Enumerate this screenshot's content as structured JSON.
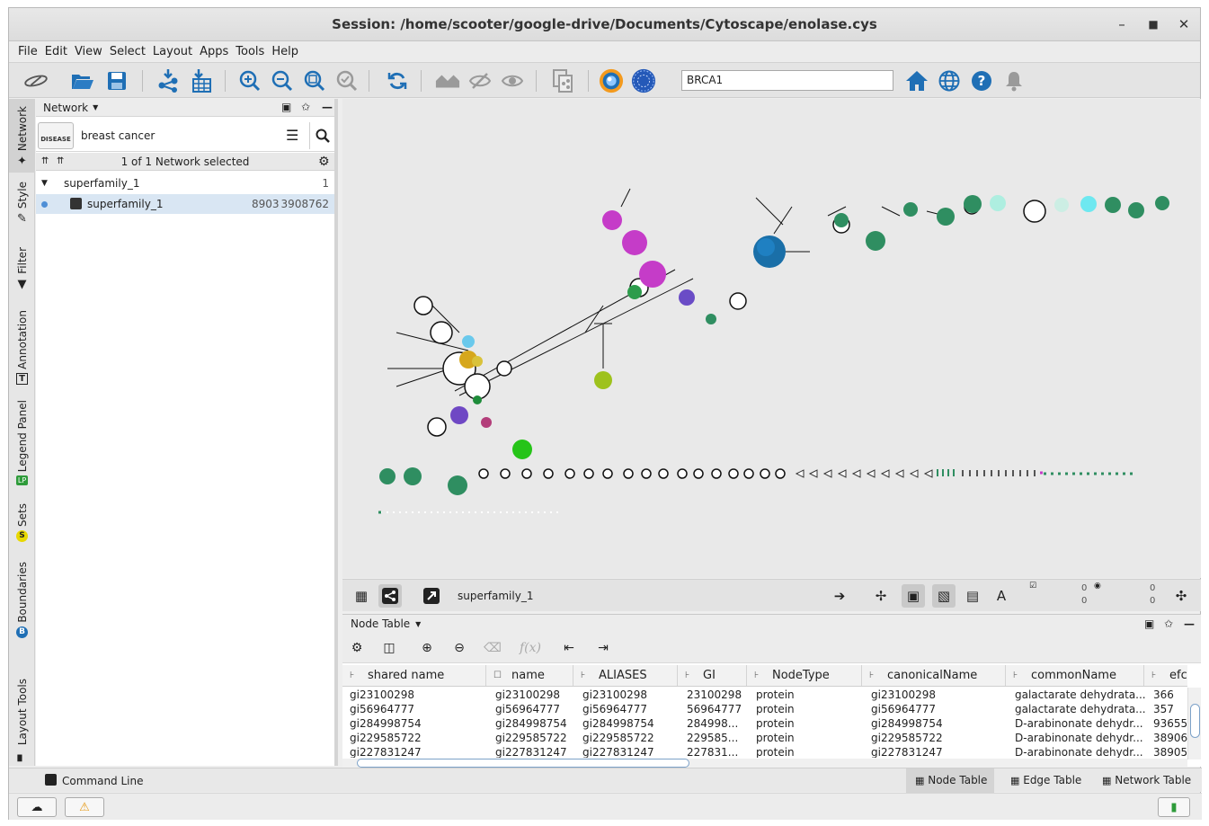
{
  "window": {
    "title": "Session: /home/scooter/google-drive/Documents/Cytoscape/enolase.cys"
  },
  "menu": [
    "File",
    "Edit",
    "View",
    "Select",
    "Layout",
    "Apps",
    "Tools",
    "Help"
  ],
  "toolbar": {
    "search_value": "BRCA1"
  },
  "side_tabs": [
    "Network",
    "Style",
    "Filter",
    "Annotation",
    "Legend Panel",
    "Sets",
    "Boundaries",
    "Layout Tools"
  ],
  "network_panel": {
    "title": "Network",
    "disease_label": "DISEASE",
    "query": "breast cancer",
    "selection_status": "1 of 1 Network selected",
    "tree": [
      {
        "name": "superfamily_1",
        "count": "1"
      },
      {
        "name": "superfamily_1",
        "nodes": "8903",
        "edges": "3908762"
      }
    ]
  },
  "network_view": {
    "name": "superfamily_1",
    "sel_nodes": "0",
    "sel_edges": "0",
    "hidden_nodes": "0",
    "hidden_edges": "0"
  },
  "table_panel": {
    "title": "Node Table",
    "columns": [
      "shared name",
      "name",
      "ALIASES",
      "GI",
      "NodeType",
      "canonicalName",
      "commonName",
      "efc"
    ],
    "rows": [
      [
        "gi23100298",
        "gi23100298",
        "gi23100298",
        "23100298",
        "protein",
        "gi23100298",
        "galactarate dehydrata...",
        "366"
      ],
      [
        "gi56964777",
        "gi56964777",
        "gi56964777",
        "56964777",
        "protein",
        "gi56964777",
        "galactarate dehydrata...",
        "357"
      ],
      [
        "gi284998754",
        "gi284998754",
        "gi284998754",
        "284998...",
        "protein",
        "gi284998754",
        "D-arabinonate dehydr...",
        "93655"
      ],
      [
        "gi229585722",
        "gi229585722",
        "gi229585722",
        "229585...",
        "protein",
        "gi229585722",
        "D-arabinonate dehydr...",
        "38906"
      ],
      [
        "gi227831247",
        "gi227831247",
        "gi227831247",
        "227831...",
        "protein",
        "gi227831247",
        "D-arabinonate dehydr...",
        "38905"
      ]
    ]
  },
  "bottom_bar": {
    "command_line": "Command Line",
    "tabs": [
      "Node Table",
      "Edge Table",
      "Network Table"
    ]
  },
  "colors": {
    "accent": "#1f6fb5",
    "selected_row": "#d9e6f3"
  }
}
